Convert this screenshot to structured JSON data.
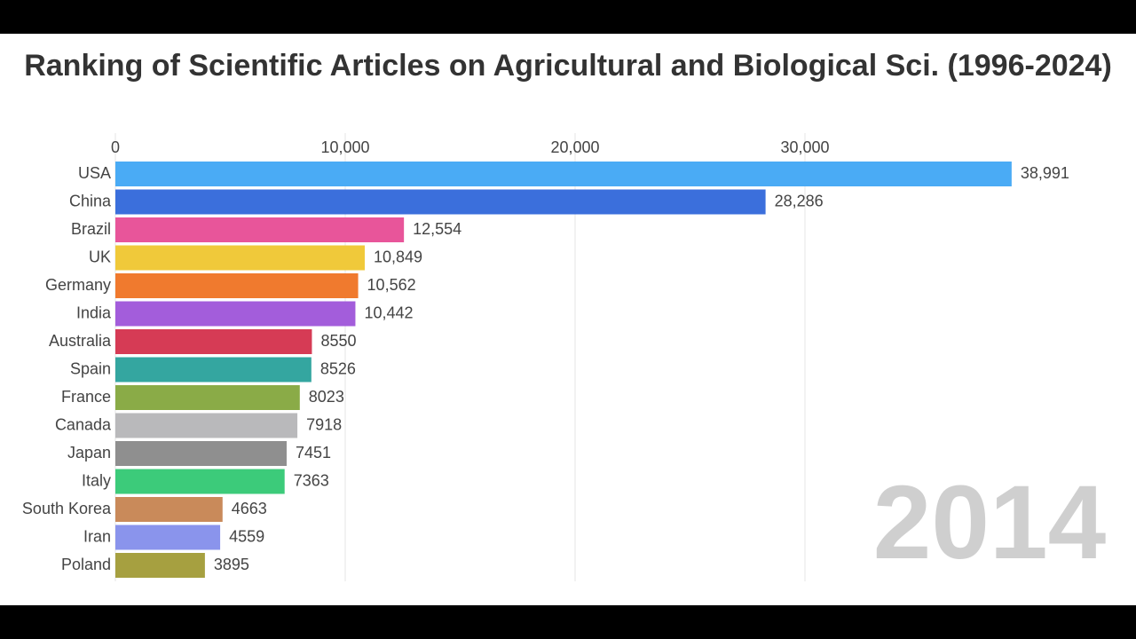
{
  "chart_data": {
    "type": "hbar",
    "title": "Ranking of Scientific Articles on Agricultural and Biological Sci. (1996-2024)",
    "annotation": "2014",
    "categories": [
      "USA",
      "China",
      "Brazil",
      "UK",
      "Germany",
      "India",
      "Australia",
      "Spain",
      "France",
      "Canada",
      "Japan",
      "Italy",
      "South Korea",
      "Iran",
      "Poland"
    ],
    "values": [
      38991,
      28286,
      12554,
      10849,
      10562,
      10442,
      8550,
      8526,
      8023,
      7918,
      7451,
      7363,
      4663,
      4559,
      3895
    ],
    "value_labels": [
      "38,991",
      "28,286",
      "12,554",
      "10,849",
      "10,562",
      "10,442",
      "8550",
      "8526",
      "8023",
      "7918",
      "7451",
      "7363",
      "4663",
      "4559",
      "3895"
    ],
    "colors": [
      "#4aabf5",
      "#3b6fdc",
      "#e8559a",
      "#f0c93a",
      "#f07a2e",
      "#a35ddb",
      "#d63b55",
      "#34a6a0",
      "#8aab47",
      "#b9b9bb",
      "#8f8f8f",
      "#3ccb7a",
      "#c98a5a",
      "#8a94ec",
      "#a6a040"
    ],
    "xlim": [
      0,
      40000
    ],
    "xticks": [
      0,
      {
        "value": 10000,
        "label": "10,000"
      },
      {
        "value": 20000,
        "label": "20,000"
      },
      {
        "value": 30000,
        "label": "30,000"
      }
    ],
    "grid": true
  }
}
